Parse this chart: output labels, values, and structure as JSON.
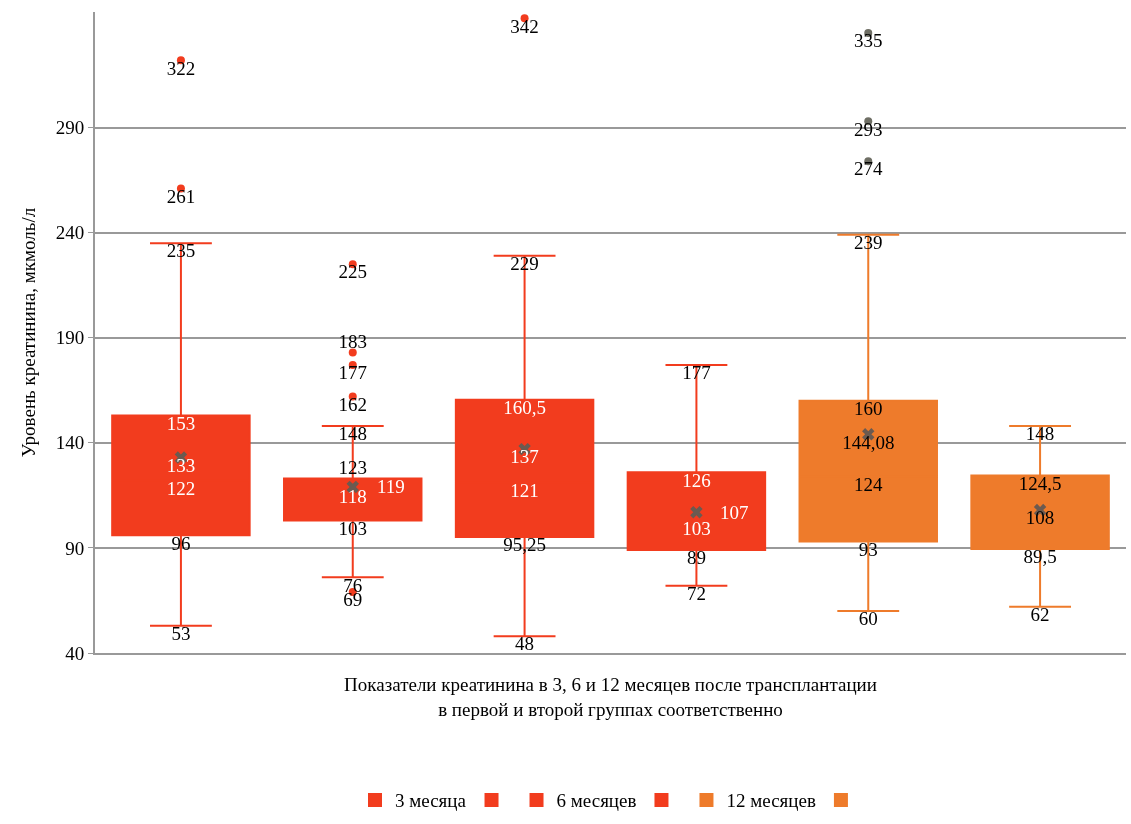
{
  "chart_data": {
    "type": "box",
    "ylabel": "Уровень креатинина, мкмоль/л",
    "xlabel": "Показатели креатинина в 3, 6 и 12 месяцев после трансплантации\nв первой и второй группах соответственно",
    "categories": [
      null,
      null,
      null,
      null,
      null,
      null
    ],
    "series": [
      {
        "name": "3 месяца",
        "color": "#f23c1e",
        "boxes": [
          {
            "low": 53,
            "q1": 96,
            "median": 122,
            "q3": 153,
            "high": 235,
            "mean": 133,
            "outliers": [
              261,
              322
            ]
          },
          null,
          null,
          null,
          null,
          null
        ],
        "value_labels": [
          [
            "53",
            "96",
            "122",
            "153",
            "235",
            "133",
            "261",
            "322"
          ],
          null,
          null,
          null,
          null,
          null
        ]
      },
      {
        "color": "#f23c1e",
        "boxes": [
          null,
          {
            "low": 76,
            "q1": 103,
            "median": 118,
            "q3": 123,
            "high": 148,
            "mean": 119,
            "outliers": [
              225,
              183,
              177,
              162,
              69
            ]
          },
          null,
          null,
          null,
          null
        ],
        "value_labels": [
          null,
          [
            "76",
            "103",
            "118",
            "123",
            "148",
            "119",
            "225",
            "183",
            "177",
            "162",
            "69"
          ],
          null,
          null,
          null,
          null
        ]
      },
      {
        "name": "6 месяцев",
        "color": "#f23c1e",
        "boxes": [
          null,
          null,
          {
            "low": 48,
            "q1": 95.25,
            "median": 121,
            "q3": 160.5,
            "high": 229,
            "mean": 137,
            "outliers": [
              342
            ]
          },
          null,
          null,
          null
        ],
        "value_labels": [
          null,
          null,
          [
            "48",
            "95,25",
            "121",
            "160,5",
            "229",
            "137",
            "342"
          ],
          null,
          null,
          null
        ]
      },
      {
        "color": "#f23c1e",
        "boxes": [
          null,
          null,
          null,
          {
            "low": 72,
            "q1": 89,
            "median": 103,
            "q3": 126,
            "high": 177,
            "mean": 107
          },
          null,
          null
        ],
        "value_labels": [
          null,
          null,
          null,
          [
            "72",
            "89",
            "103",
            "126",
            "177",
            "107"
          ],
          null,
          null
        ]
      },
      {
        "name": "12 месяцев",
        "color": "#ee7b2b",
        "boxes": [
          null,
          null,
          null,
          null,
          {
            "low": 60,
            "q1": 93,
            "median": 124,
            "q3": 160,
            "high": 239,
            "mean": 144.08,
            "outliers": [
              274,
              293,
              335
            ]
          },
          null
        ],
        "value_labels": [
          null,
          null,
          null,
          null,
          [
            "60",
            "93",
            "124",
            "160",
            "239",
            "144,08",
            "274",
            "293",
            "335"
          ],
          null
        ]
      },
      {
        "color": "#ee7b2b",
        "boxes": [
          null,
          null,
          null,
          null,
          null,
          {
            "low": 62,
            "q1": 89.5,
            "median": 108,
            "q3": 124.5,
            "high": 148,
            "mean": 108
          }
        ],
        "value_labels": [
          null,
          null,
          null,
          null,
          null,
          [
            "62",
            "89,5",
            "108",
            "124,5",
            "148",
            null
          ]
        ]
      }
    ],
    "ylim": [
      40,
      345
    ],
    "yticks": [
      40,
      90,
      140,
      190,
      240,
      290
    ],
    "grid": "y",
    "legend": "bottom"
  }
}
